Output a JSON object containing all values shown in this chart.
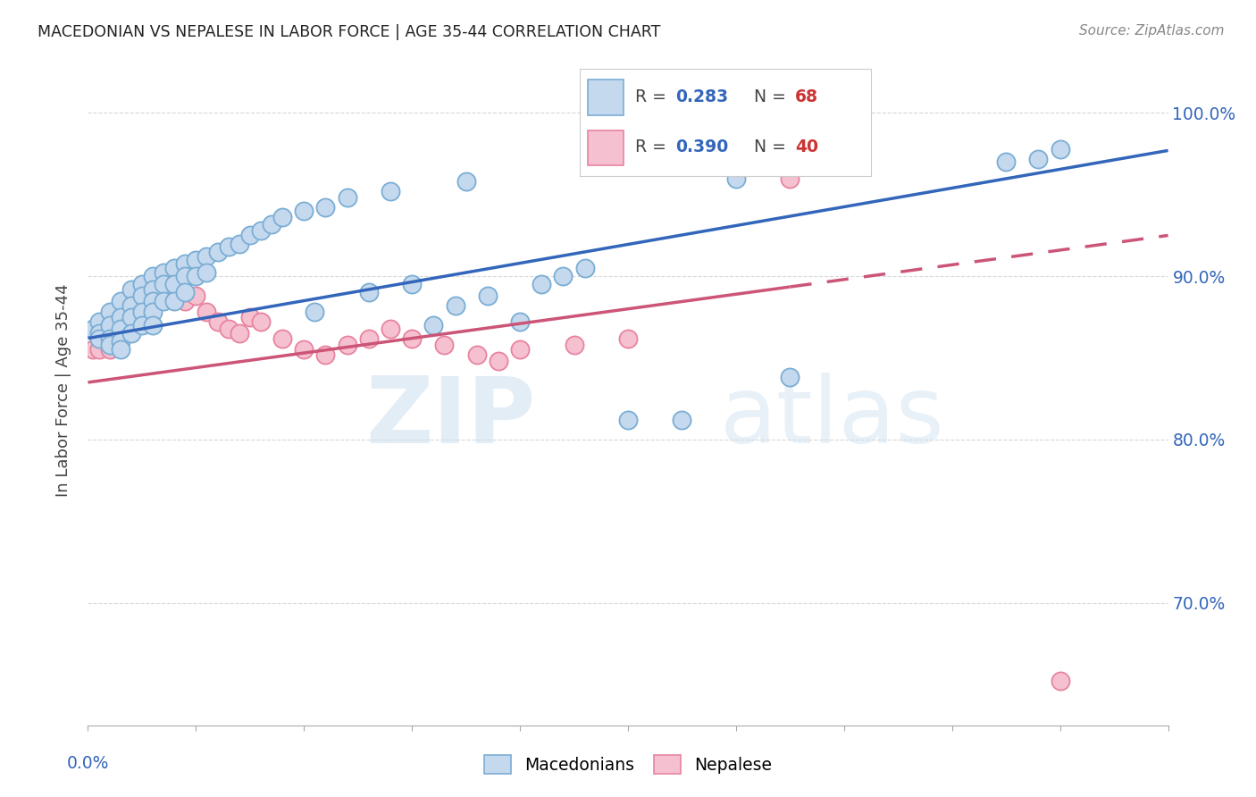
{
  "title": "MACEDONIAN VS NEPALESE IN LABOR FORCE | AGE 35-44 CORRELATION CHART",
  "source": "Source: ZipAtlas.com",
  "ylabel": "In Labor Force | Age 35-44",
  "ytick_labels": [
    "70.0%",
    "80.0%",
    "90.0%",
    "100.0%"
  ],
  "ytick_values": [
    0.7,
    0.8,
    0.9,
    1.0
  ],
  "xlim": [
    0.0,
    0.1
  ],
  "ylim": [
    0.625,
    1.035
  ],
  "blue_color": "#c5d9ee",
  "blue_edge": "#7aadd4",
  "pink_color": "#f5c0cf",
  "pink_edge": "#e8849f",
  "blue_line_color": "#3366bb",
  "pink_line_color": "#cc5577",
  "blue_intercept": 0.862,
  "blue_slope": 1.15,
  "pink_intercept": 0.835,
  "pink_slope": 0.9,
  "macedonians_x": [
    0.0005,
    0.001,
    0.001,
    0.001,
    0.002,
    0.002,
    0.002,
    0.002,
    0.003,
    0.003,
    0.003,
    0.003,
    0.003,
    0.004,
    0.004,
    0.004,
    0.004,
    0.005,
    0.005,
    0.005,
    0.005,
    0.006,
    0.006,
    0.006,
    0.006,
    0.006,
    0.007,
    0.007,
    0.007,
    0.008,
    0.008,
    0.008,
    0.009,
    0.009,
    0.009,
    0.01,
    0.01,
    0.011,
    0.011,
    0.012,
    0.013,
    0.014,
    0.015,
    0.016,
    0.017,
    0.018,
    0.02,
    0.021,
    0.022,
    0.024,
    0.026,
    0.028,
    0.03,
    0.032,
    0.034,
    0.035,
    0.037,
    0.04,
    0.042,
    0.044,
    0.046,
    0.05,
    0.055,
    0.06,
    0.065,
    0.085,
    0.088,
    0.09
  ],
  "macedonians_y": [
    0.868,
    0.872,
    0.865,
    0.862,
    0.878,
    0.87,
    0.862,
    0.858,
    0.885,
    0.875,
    0.868,
    0.86,
    0.855,
    0.892,
    0.882,
    0.875,
    0.865,
    0.895,
    0.888,
    0.878,
    0.87,
    0.9,
    0.892,
    0.885,
    0.878,
    0.87,
    0.902,
    0.895,
    0.885,
    0.905,
    0.895,
    0.885,
    0.908,
    0.9,
    0.89,
    0.91,
    0.9,
    0.912,
    0.902,
    0.915,
    0.918,
    0.92,
    0.925,
    0.928,
    0.932,
    0.936,
    0.94,
    0.878,
    0.942,
    0.948,
    0.89,
    0.952,
    0.895,
    0.87,
    0.882,
    0.958,
    0.888,
    0.872,
    0.895,
    0.9,
    0.905,
    0.812,
    0.812,
    0.96,
    0.838,
    0.97,
    0.972,
    0.978
  ],
  "nepalese_x": [
    0.0005,
    0.001,
    0.001,
    0.002,
    0.002,
    0.002,
    0.003,
    0.003,
    0.004,
    0.004,
    0.005,
    0.005,
    0.006,
    0.006,
    0.007,
    0.007,
    0.008,
    0.009,
    0.01,
    0.011,
    0.012,
    0.013,
    0.014,
    0.015,
    0.016,
    0.018,
    0.02,
    0.022,
    0.024,
    0.026,
    0.028,
    0.03,
    0.033,
    0.036,
    0.038,
    0.04,
    0.045,
    0.05,
    0.065,
    0.09
  ],
  "nepalese_y": [
    0.855,
    0.862,
    0.855,
    0.87,
    0.862,
    0.855,
    0.878,
    0.868,
    0.882,
    0.872,
    0.888,
    0.878,
    0.895,
    0.882,
    0.9,
    0.888,
    0.895,
    0.885,
    0.888,
    0.878,
    0.872,
    0.868,
    0.865,
    0.875,
    0.872,
    0.862,
    0.855,
    0.852,
    0.858,
    0.862,
    0.868,
    0.862,
    0.858,
    0.852,
    0.848,
    0.855,
    0.858,
    0.862,
    0.96,
    0.652
  ]
}
